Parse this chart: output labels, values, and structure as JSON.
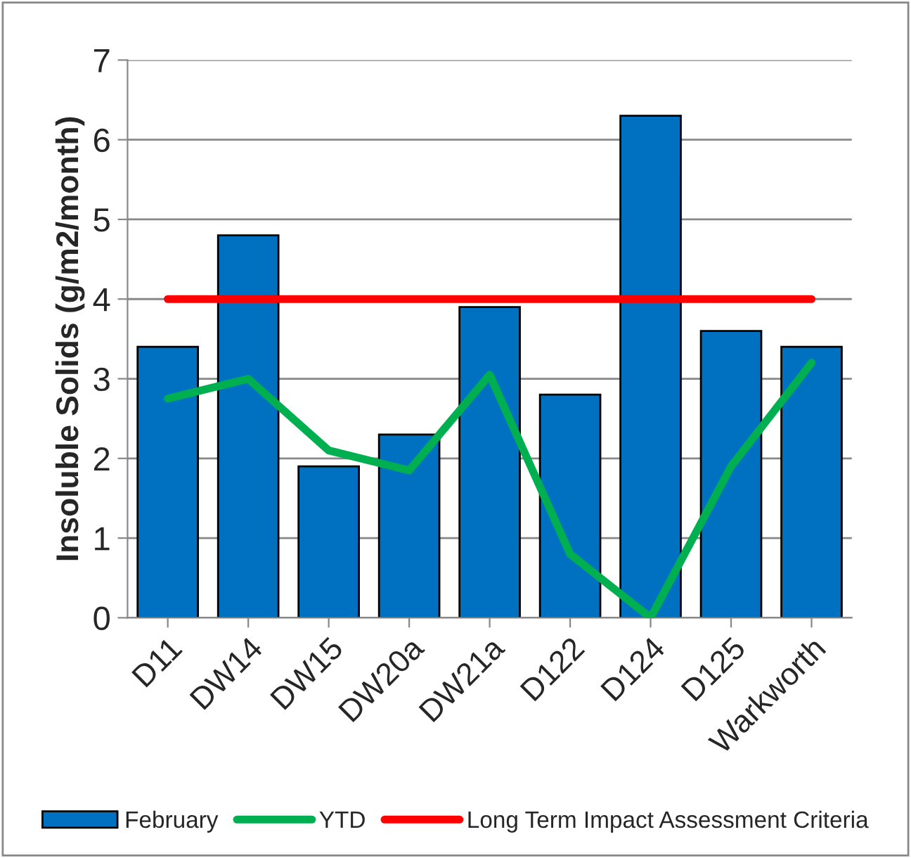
{
  "chart_data": {
    "type": "bar",
    "ylabel": "Insoluble Solids (g/m2/month)",
    "categories": [
      "D11",
      "DW14",
      "DW15",
      "DW20a",
      "DW21a",
      "D122",
      "D124",
      "D125",
      "Warkworth"
    ],
    "series": [
      {
        "name": "February",
        "color": "#0070c0",
        "values": [
          3.4,
          4.8,
          1.9,
          2.3,
          3.9,
          2.8,
          6.3,
          3.6,
          3.4
        ]
      },
      {
        "name": "YTD",
        "type": "line",
        "color": "#00b050",
        "values": [
          2.75,
          3.0,
          2.1,
          1.85,
          3.05,
          0.8,
          0.0,
          1.9,
          3.2
        ]
      },
      {
        "name": "Long Term Impact Assessment Criteria",
        "type": "line",
        "color": "#ff0000",
        "values": [
          4,
          4,
          4,
          4,
          4,
          4,
          4,
          4,
          4
        ]
      }
    ],
    "ylim": [
      0,
      7
    ],
    "yticks": [
      0,
      1,
      2,
      3,
      4,
      5,
      6,
      7
    ],
    "grid": "y",
    "legend": "bottom",
    "marker": "none",
    "line_style": "solid"
  }
}
